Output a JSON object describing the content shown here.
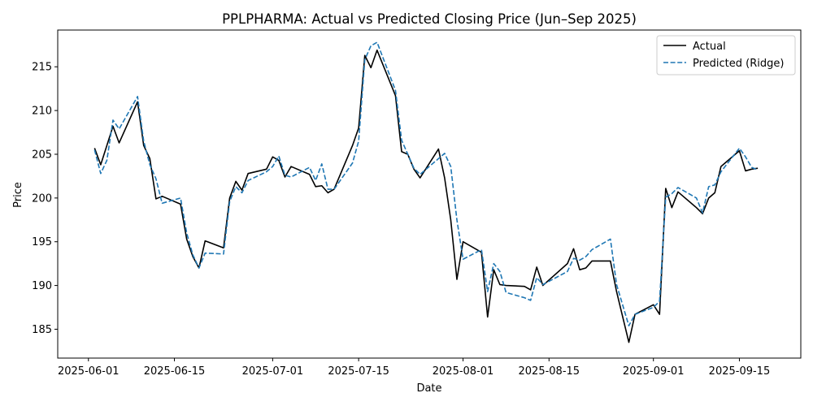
{
  "chart_data": {
    "type": "line",
    "title": "PPLPHARMA: Actual vs Predicted Closing Price (Jun–Sep 2025)",
    "xlabel": "Date",
    "ylabel": "Price",
    "xlim": [
      "2025-05-27",
      "2025-09-25"
    ],
    "ylim": [
      181.7,
      219.2
    ],
    "x_ticks": [
      "2025-06-01",
      "2025-06-15",
      "2025-07-01",
      "2025-07-15",
      "2025-08-01",
      "2025-08-15",
      "2025-09-01",
      "2025-09-15"
    ],
    "y_ticks": [
      185,
      190,
      195,
      200,
      205,
      210,
      215
    ],
    "grid": false,
    "legend_position": "top-right",
    "colors": {
      "actual": "#000000",
      "predicted": "#1f77b4"
    },
    "x": [
      "2025-06-02",
      "2025-06-03",
      "2025-06-04",
      "2025-06-05",
      "2025-06-06",
      "2025-06-09",
      "2025-06-10",
      "2025-06-11",
      "2025-06-12",
      "2025-06-13",
      "2025-06-16",
      "2025-06-17",
      "2025-06-18",
      "2025-06-19",
      "2025-06-20",
      "2025-06-23",
      "2025-06-24",
      "2025-06-25",
      "2025-06-26",
      "2025-06-27",
      "2025-06-30",
      "2025-07-01",
      "2025-07-02",
      "2025-07-03",
      "2025-07-04",
      "2025-07-07",
      "2025-07-08",
      "2025-07-09",
      "2025-07-10",
      "2025-07-11",
      "2025-07-14",
      "2025-07-15",
      "2025-07-16",
      "2025-07-17",
      "2025-07-18",
      "2025-07-21",
      "2025-07-22",
      "2025-07-23",
      "2025-07-24",
      "2025-07-25",
      "2025-07-28",
      "2025-07-29",
      "2025-07-30",
      "2025-07-31",
      "2025-08-01",
      "2025-08-04",
      "2025-08-05",
      "2025-08-06",
      "2025-08-07",
      "2025-08-08",
      "2025-08-11",
      "2025-08-12",
      "2025-08-13",
      "2025-08-14",
      "2025-08-18",
      "2025-08-19",
      "2025-08-20",
      "2025-08-21",
      "2025-08-22",
      "2025-08-25",
      "2025-08-26",
      "2025-08-28",
      "2025-08-29",
      "2025-09-01",
      "2025-09-02",
      "2025-09-03",
      "2025-09-04",
      "2025-09-05",
      "2025-09-08",
      "2025-09-09",
      "2025-09-10",
      "2025-09-11",
      "2025-09-12",
      "2025-09-15",
      "2025-09-16",
      "2025-09-17",
      "2025-09-18"
    ],
    "series": [
      {
        "name": "Actual",
        "values": [
          205.7,
          203.8,
          206.0,
          208.2,
          206.3,
          211.0,
          206.0,
          204.5,
          199.9,
          200.2,
          199.3,
          195.3,
          193.3,
          192.0,
          195.1,
          194.3,
          200.0,
          201.9,
          200.9,
          202.8,
          203.3,
          204.7,
          204.3,
          202.4,
          203.6,
          202.7,
          201.3,
          201.4,
          200.6,
          201.0,
          206.0,
          208.0,
          216.3,
          214.9,
          216.9,
          211.7,
          205.3,
          205.0,
          203.3,
          202.3,
          205.6,
          202.3,
          197.5,
          190.7,
          195.0,
          193.8,
          186.4,
          191.8,
          190.1,
          190.0,
          189.9,
          189.5,
          192.1,
          190.0,
          192.5,
          194.2,
          191.8,
          192.0,
          192.8,
          192.8,
          189.3,
          183.5,
          186.7,
          187.8,
          186.7,
          201.1,
          198.9,
          200.7,
          198.9,
          198.2,
          200.0,
          200.6,
          203.6,
          205.4,
          203.1,
          203.3,
          203.4
        ]
      },
      {
        "name": "Predicted (Ridge)",
        "values": [
          205.5,
          202.8,
          204.3,
          208.9,
          207.9,
          211.6,
          206.5,
          203.8,
          202.2,
          199.4,
          200.0,
          196.0,
          193.5,
          192.0,
          193.7,
          193.6,
          199.6,
          201.3,
          200.6,
          202.0,
          203.0,
          203.6,
          204.8,
          202.6,
          202.4,
          203.5,
          202.0,
          203.9,
          201.0,
          201.0,
          204.0,
          206.5,
          215.8,
          217.4,
          217.8,
          212.3,
          206.6,
          205.0,
          203.4,
          202.7,
          204.5,
          205.1,
          203.6,
          197.5,
          193.0,
          194.1,
          189.3,
          192.5,
          191.6,
          189.2,
          188.6,
          188.3,
          190.9,
          190.1,
          191.6,
          193.1,
          192.9,
          193.3,
          194.1,
          195.3,
          190.1,
          185.4,
          186.7,
          187.5,
          188.2,
          200.1,
          200.5,
          201.2,
          200.0,
          198.3,
          201.3,
          201.5,
          203.0,
          205.7,
          204.7,
          203.5,
          203.2
        ]
      }
    ]
  }
}
